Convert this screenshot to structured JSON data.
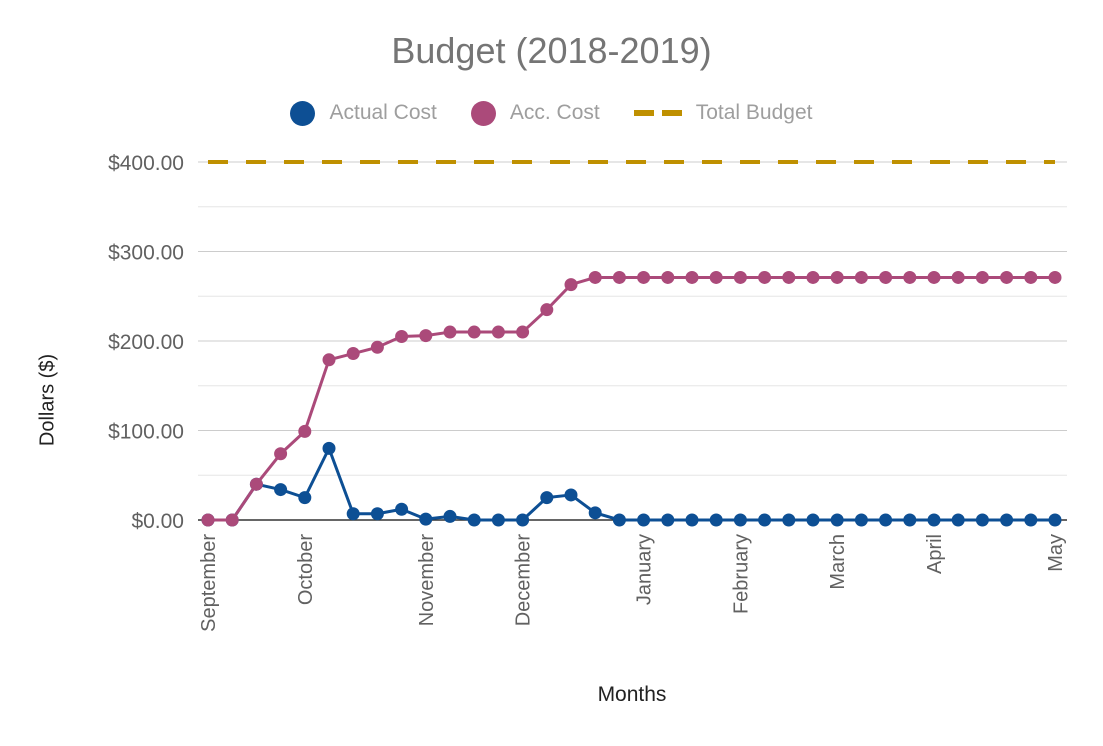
{
  "chart_data": {
    "type": "line",
    "title": "Budget (2018-2019)",
    "xlabel": "Months",
    "ylabel": "Dollars ($)",
    "ylim": [
      0,
      400
    ],
    "y_ticks": [
      "$0.00",
      "$100.00",
      "$200.00",
      "$300.00",
      "$400.00"
    ],
    "y_tick_values": [
      0,
      100,
      200,
      300,
      400
    ],
    "minor_gridlines": true,
    "x_tick_labels": [
      "September",
      "October",
      "November",
      "December",
      "January",
      "February",
      "March",
      "April",
      "May"
    ],
    "x_tick_positions": [
      0,
      4,
      9,
      13,
      18,
      22,
      26,
      30,
      35
    ],
    "legend_position": "top-center",
    "series": [
      {
        "name": "Actual Cost",
        "color": "#0d4f94",
        "style": "line-markers",
        "values": [
          0,
          0,
          40,
          34,
          25,
          80,
          7,
          7,
          12,
          1,
          4,
          0,
          0,
          0,
          25,
          28,
          8,
          0,
          0,
          0,
          0,
          0,
          0,
          0,
          0,
          0,
          0,
          0,
          0,
          0,
          0,
          0,
          0,
          0,
          0,
          0
        ]
      },
      {
        "name": "Acc. Cost",
        "color": "#ab4a7a",
        "style": "line-markers",
        "values": [
          0,
          0,
          40,
          74,
          99,
          179,
          186,
          193,
          205,
          206,
          210,
          210,
          210,
          210,
          235,
          263,
          271,
          271,
          271,
          271,
          271,
          271,
          271,
          271,
          271,
          271,
          271,
          271,
          271,
          271,
          271,
          271,
          271,
          271,
          271,
          271
        ]
      },
      {
        "name": "Total Budget",
        "color": "#bf9000",
        "style": "dashed",
        "values": [
          400,
          400,
          400,
          400,
          400,
          400,
          400,
          400,
          400,
          400,
          400,
          400,
          400,
          400,
          400,
          400,
          400,
          400,
          400,
          400,
          400,
          400,
          400,
          400,
          400,
          400,
          400,
          400,
          400,
          400,
          400,
          400,
          400,
          400,
          400,
          400
        ]
      }
    ]
  }
}
